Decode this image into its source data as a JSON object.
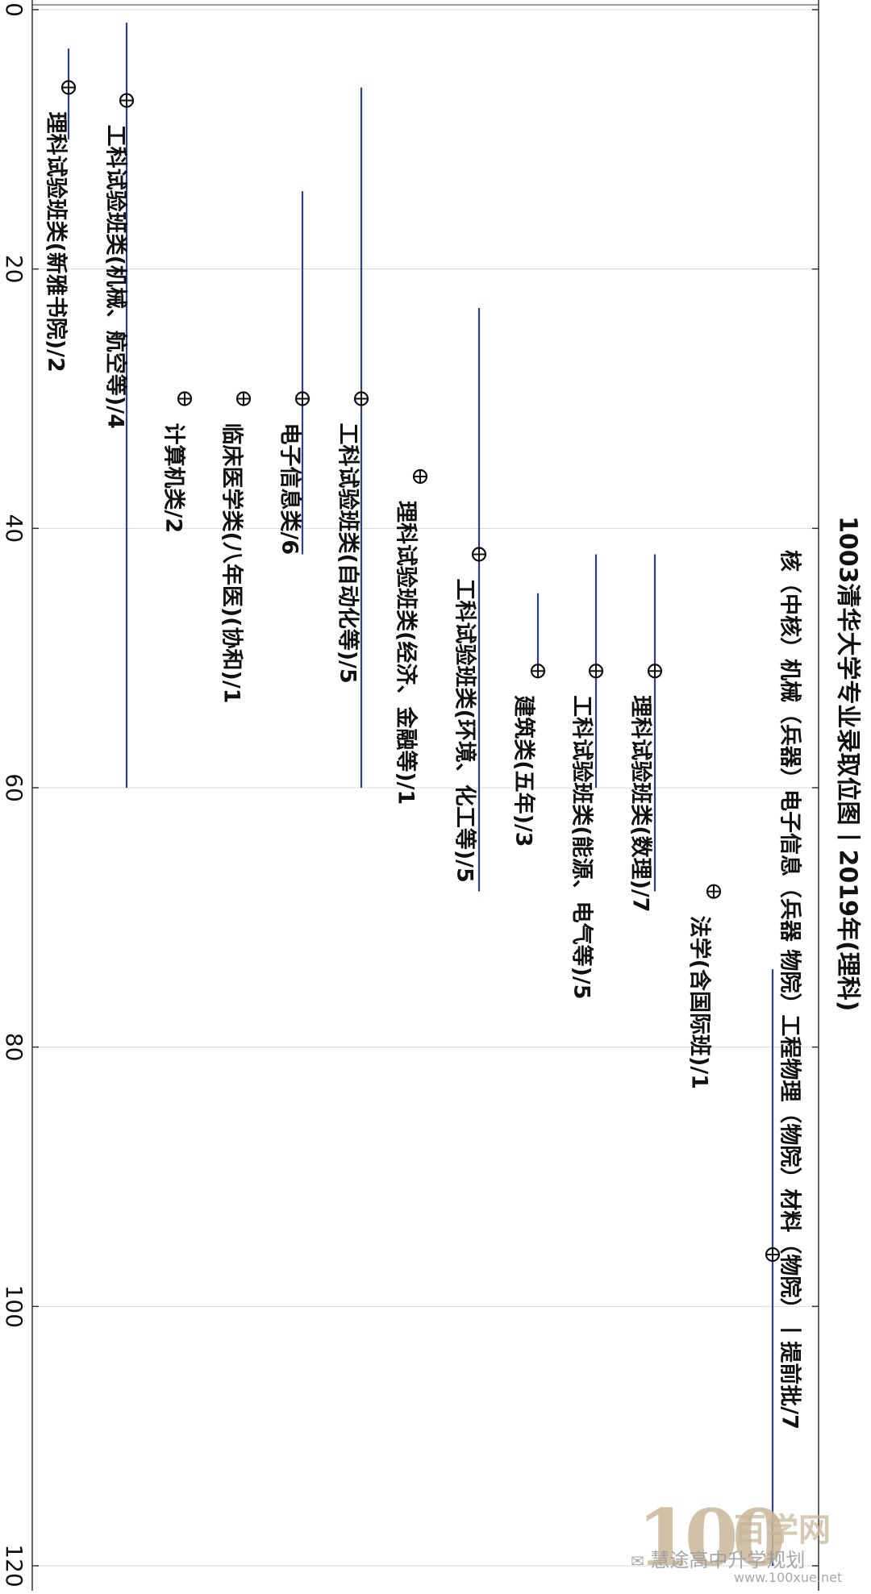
{
  "chart_data": {
    "type": "scatter",
    "title": "1003清华大学专业录取位图丨2019年(理科)",
    "axis": {
      "range": [
        0,
        120
      ],
      "ticks": [
        0,
        20,
        40,
        60,
        80,
        100,
        120
      ],
      "grid": true,
      "orientation": "rotated"
    },
    "series": [
      {
        "label": "理科试验班类(新雅书院)/2",
        "median": 6,
        "low": 3,
        "high": 10
      },
      {
        "label": "工科试验班类(机械、航空等)/4",
        "median": 7,
        "low": 1,
        "high": 60
      },
      {
        "label": "计算机类/2",
        "median": 30,
        "low": null,
        "high": null
      },
      {
        "label": "临床医学类(八年医)(协和)/1",
        "median": 30,
        "low": null,
        "high": null
      },
      {
        "label": "电子信息类/6",
        "median": 30,
        "low": 14,
        "high": 42
      },
      {
        "label": "工科试验班类(自动化等)/5",
        "median": 30,
        "low": 6,
        "high": 60
      },
      {
        "label": "理科试验班类(经济、金融等)/1",
        "median": 36,
        "low": null,
        "high": null
      },
      {
        "label": "工科试验班类(环境、化工等)/5",
        "median": 42,
        "low": 23,
        "high": 68
      },
      {
        "label": "建筑类(五年)/3",
        "median": 51,
        "low": 45,
        "high": 51
      },
      {
        "label": "工科试验班类(能源、电气等)/5",
        "median": 51,
        "low": 42,
        "high": 60
      },
      {
        "label": "理科试验班类(数理)/7",
        "median": 51,
        "low": 42,
        "high": 68
      },
      {
        "label": "法学(含国际班)/1",
        "median": 68,
        "low": null,
        "high": null
      },
      {
        "label": "核（中核）机械（兵器）电子信息（兵器 物院）工程物理（物院）材料（物院）丨提前批/7",
        "median": 96,
        "low": 74,
        "high": 120
      }
    ]
  },
  "watermark": {
    "logo_text": "100",
    "site_name": "百学网",
    "account": "慧途高中升学规划",
    "url": "www.100xue.net",
    "colors": {
      "logo": "#c9b79a",
      "text": "#9a9a9a"
    }
  },
  "colors": {
    "line": "#2e3f8f",
    "marker": "#111111",
    "grid": "#d9d9d9",
    "text": "#111111"
  }
}
